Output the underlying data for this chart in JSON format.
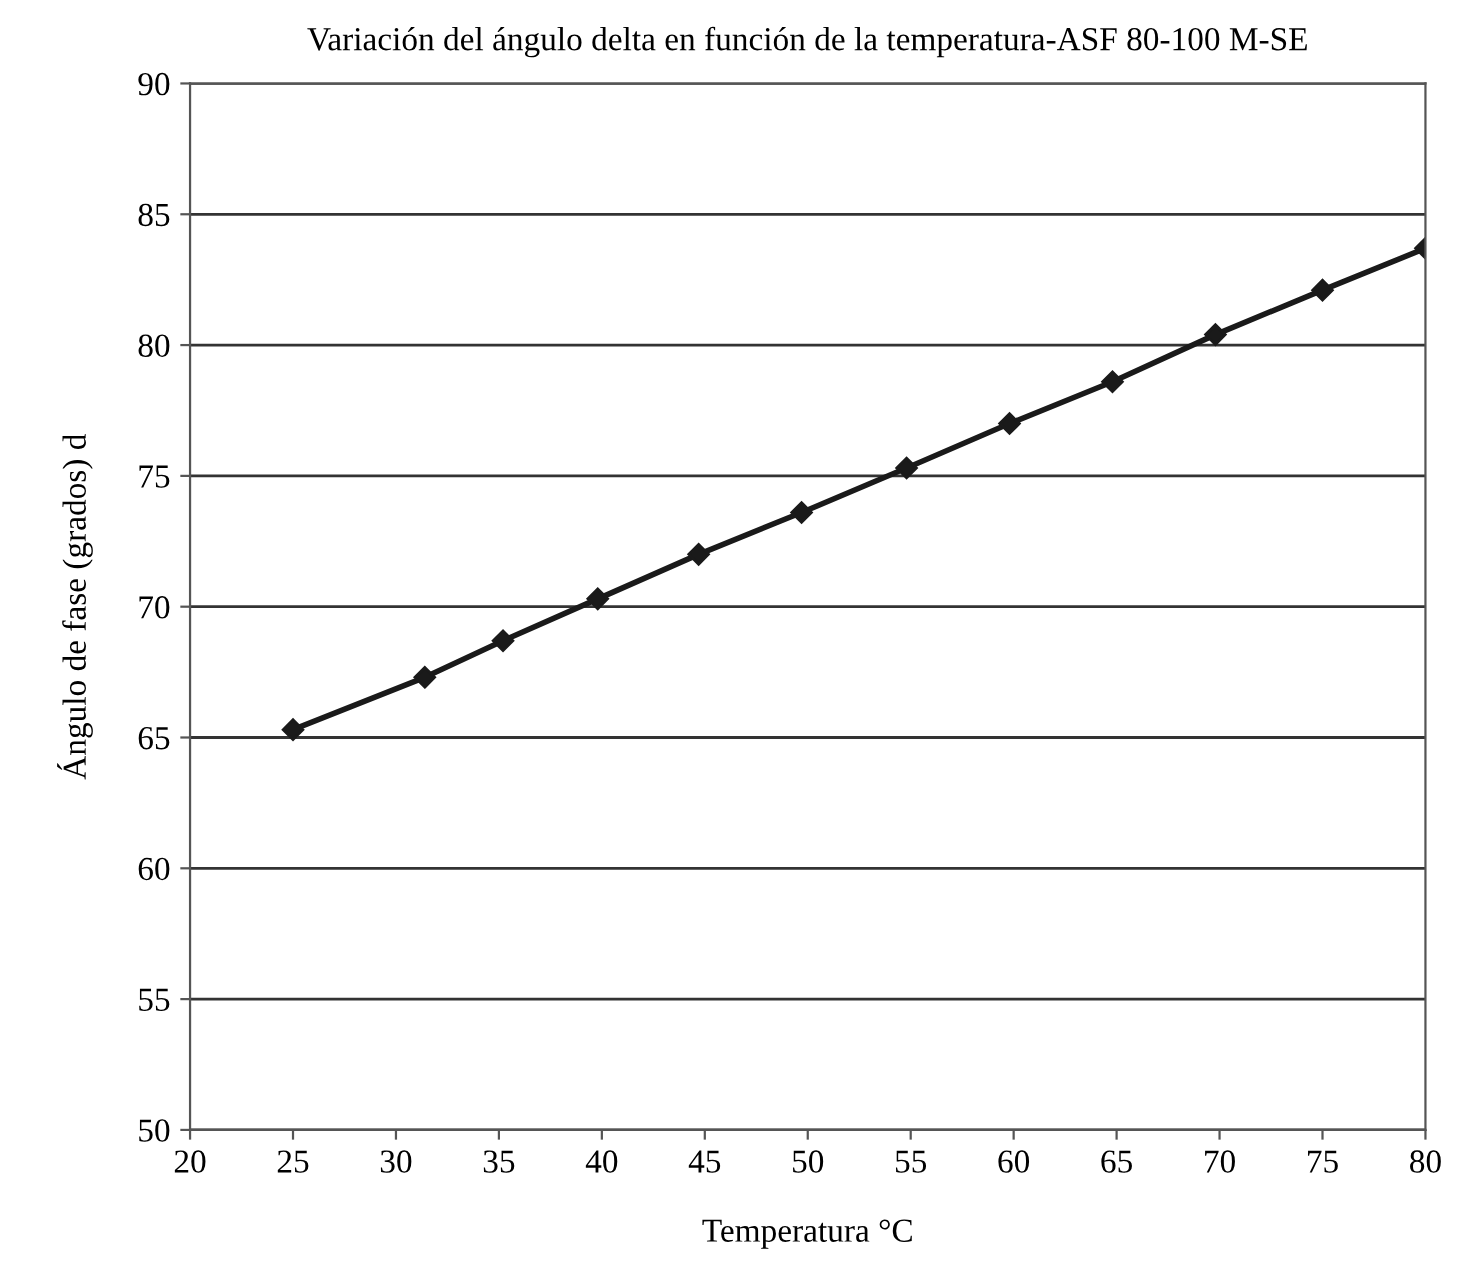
{
  "chart_data": {
    "type": "line",
    "title": "Variación del ángulo delta en función de la temperatura-ASF 80-100 M-SE",
    "xlabel": "Temperatura °C",
    "ylabel": "Ángulo de fase (grados) d",
    "series": [
      {
        "color": "#1a1a1a",
        "x": [
          25,
          31.4,
          35.2,
          39.8,
          44.7,
          49.7,
          54.8,
          59.8,
          64.8,
          69.8,
          75,
          80
        ],
        "values": [
          65.3,
          67.3,
          68.7,
          70.3,
          72.0,
          73.6,
          75.3,
          77.0,
          78.6,
          80.4,
          82.1,
          83.7
        ]
      }
    ],
    "xlim": [
      20,
      80
    ],
    "xticks": [
      20,
      25,
      30,
      35,
      40,
      45,
      50,
      55,
      60,
      65,
      70,
      75,
      80
    ],
    "ylim": [
      50,
      90
    ],
    "yticks": [
      50,
      55,
      60,
      65,
      70,
      75,
      80,
      85,
      90
    ],
    "grid": "y",
    "marker": "diamond",
    "line_style": "solid"
  }
}
